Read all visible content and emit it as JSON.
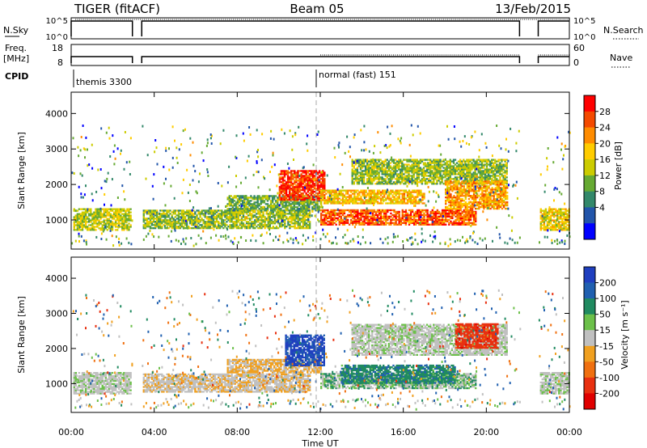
{
  "header": {
    "radar": "TIGER (fitACF)",
    "beam": "Beam 05",
    "date": "13/Feb/2015"
  },
  "params": {
    "nsky_label": "N.Sky",
    "nsky_ticks": [
      "10^5",
      "10^0"
    ],
    "nsearch_label": "N.Search",
    "nsearch_ticks": [
      "10^5",
      "10^0"
    ],
    "freq_label": "Freq.",
    "freq_unit": "[MHz]",
    "freq_ticks": [
      "18",
      "8"
    ],
    "nave_label": "Nave",
    "nave_ticks": [
      "60",
      "0"
    ],
    "cpid_label": "CPID",
    "cpid_segments": [
      {
        "name": "themis 3300",
        "start_hour": 0,
        "end_hour": 12
      },
      {
        "name": "normal (fast) 151",
        "start_hour": 12,
        "end_hour": 24
      }
    ]
  },
  "x_axis": {
    "label": "Time UT",
    "ticks": [
      "00:00",
      "04:00",
      "08:00",
      "12:00",
      "16:00",
      "20:00",
      "00:00"
    ],
    "range_hours": [
      0,
      24
    ]
  },
  "y_axis": {
    "label": "Slant Range [km]",
    "ticks": [
      "1000",
      "2000",
      "3000",
      "4000"
    ],
    "range_km": [
      180,
      4600
    ]
  },
  "power_colorbar": {
    "label": "Power [dB]",
    "ticks": [
      "28",
      "24",
      "20",
      "16",
      "12",
      "8",
      "4"
    ],
    "colors": [
      "#ff0000",
      "#f44a00",
      "#ff8c00",
      "#ffcc00",
      "#cccc00",
      "#66aa33",
      "#33886a",
      "#2255aa",
      "#0000ff"
    ]
  },
  "velocity_colorbar": {
    "label": "Velocity [m s⁻¹]",
    "ticks": [
      "200",
      "100",
      "50",
      "15",
      "-15",
      "-50",
      "-100",
      "-200"
    ],
    "colors": [
      "#1f3fbf",
      "#2060b0",
      "#208a60",
      "#6cc04a",
      "#c0c0c0",
      "#f0a020",
      "#f07010",
      "#e83010",
      "#e00000"
    ]
  },
  "chart_data": [
    {
      "type": "heatmap",
      "title": "",
      "xlabel": "Time UT",
      "ylabel": "Slant Range [km]",
      "xlim": [
        0,
        24
      ],
      "ylim": [
        180,
        4600
      ],
      "colorbar": "Power [dB]",
      "data_gaps_hours": [
        [
          2.95,
          3.4
        ],
        [
          21.6,
          22.5
        ]
      ],
      "echo_regions": [
        {
          "t0": 0.1,
          "t1": 2.9,
          "r0": 700,
          "r1": 1300,
          "value": 16
        },
        {
          "t0": 3.45,
          "t1": 11.5,
          "r0": 750,
          "r1": 1250,
          "value": 14
        },
        {
          "t0": 7.5,
          "t1": 12.0,
          "r0": 1250,
          "r1": 1700,
          "value": 12
        },
        {
          "t0": 10.0,
          "t1": 12.2,
          "r0": 1550,
          "r1": 2400,
          "value": 28
        },
        {
          "t0": 12.0,
          "t1": 19.5,
          "r0": 850,
          "r1": 1300,
          "value": 26
        },
        {
          "t0": 12.0,
          "t1": 17.0,
          "r0": 1450,
          "r1": 1850,
          "value": 20
        },
        {
          "t0": 13.5,
          "t1": 21.0,
          "r0": 2000,
          "r1": 2700,
          "value": 14
        },
        {
          "t0": 18.0,
          "t1": 21.0,
          "r0": 1300,
          "r1": 2100,
          "value": 22
        },
        {
          "t0": 22.5,
          "t1": 24.0,
          "r0": 700,
          "r1": 1300,
          "value": 18
        }
      ]
    },
    {
      "type": "heatmap",
      "title": "",
      "xlabel": "Time UT",
      "ylabel": "Slant Range [km]",
      "xlim": [
        0,
        24
      ],
      "ylim": [
        180,
        4600
      ],
      "colorbar": "Velocity [m s⁻¹]",
      "data_gaps_hours": [
        [
          2.95,
          3.4
        ],
        [
          21.6,
          22.5
        ]
      ],
      "echo_regions": [
        {
          "t0": 0.1,
          "t1": 2.9,
          "r0": 700,
          "r1": 1300,
          "value": 0
        },
        {
          "t0": 3.45,
          "t1": 11.5,
          "r0": 750,
          "r1": 1250,
          "value": -20
        },
        {
          "t0": 7.5,
          "t1": 12.0,
          "r0": 1300,
          "r1": 1700,
          "value": -40
        },
        {
          "t0": 10.3,
          "t1": 12.2,
          "r0": 1500,
          "r1": 2400,
          "value": 160
        },
        {
          "t0": 12.0,
          "t1": 19.5,
          "r0": 850,
          "r1": 1300,
          "value": 20
        },
        {
          "t0": 13.0,
          "t1": 18.5,
          "r0": 1000,
          "r1": 1500,
          "value": 60
        },
        {
          "t0": 13.5,
          "t1": 21.0,
          "r0": 1800,
          "r1": 2700,
          "value": 0
        },
        {
          "t0": 18.5,
          "t1": 20.5,
          "r0": 2000,
          "r1": 2700,
          "value": -150
        },
        {
          "t0": 22.5,
          "t1": 24.0,
          "r0": 700,
          "r1": 1300,
          "value": 0
        }
      ]
    }
  ]
}
